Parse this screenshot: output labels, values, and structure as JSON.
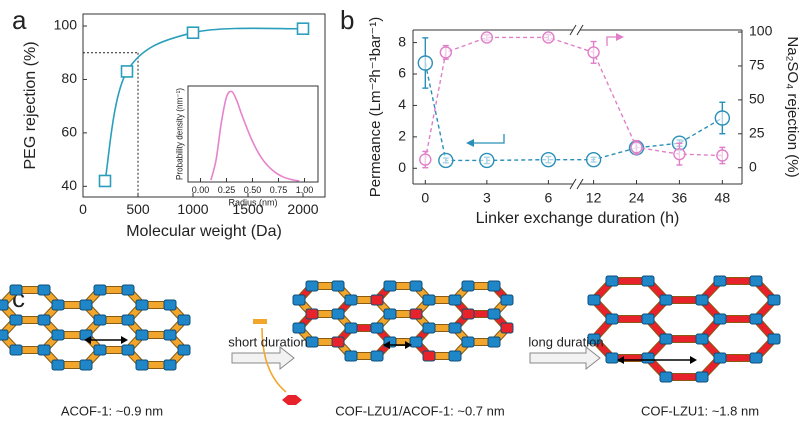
{
  "panel_labels": [
    "a",
    "b",
    "c"
  ],
  "chart_data": [
    {
      "type": "line",
      "markers": "square",
      "xlabel": "Molecular weight (Da)",
      "ylabel": "PEG rejection (%)",
      "x": [
        200,
        400,
        1000,
        2000
      ],
      "series": [
        {
          "color": "#2a9fbc",
          "values": [
            42,
            83,
            97.5,
            99
          ]
        }
      ],
      "xlim": [
        0,
        2200
      ],
      "ylim": [
        36,
        104.5
      ],
      "xticks": [
        0,
        500,
        1000,
        1500,
        2000
      ],
      "yticks": [
        40,
        60,
        80,
        100
      ],
      "cutoff": {
        "x": 500,
        "y": 90
      }
    },
    {
      "type": "line",
      "inset": true,
      "xlabel": "Radius (nm)",
      "ylabel": "Probability density (nm⁻¹)",
      "x": [
        0.1,
        0.15,
        0.2,
        0.25,
        0.3,
        0.35,
        0.4,
        0.5,
        0.6,
        0.7,
        0.8,
        0.9,
        0.95
      ],
      "series": [
        {
          "color": "#e683cc",
          "values": [
            0.05,
            0.6,
            1.6,
            2.3,
            2.45,
            2.2,
            1.8,
            1.1,
            0.6,
            0.3,
            0.13,
            0.05,
            0.03
          ]
        }
      ],
      "xlim": [
        -0.12,
        1.13
      ],
      "ylim": [
        0,
        2.6
      ],
      "xticks": [
        {
          "value": 0,
          "label": "0.00"
        },
        {
          "value": 0.25,
          "label": "0.25"
        },
        {
          "value": 0.5,
          "label": "0.50"
        },
        {
          "value": 0.75,
          "label": "0.75"
        },
        {
          "value": 1,
          "label": "1.00"
        }
      ]
    },
    {
      "type": "line",
      "markers": "circle",
      "linestyle": "dashed",
      "xlabel": "Linker exchange duration (h)",
      "ylabel": "Permeance (Lm⁻²h⁻¹bar⁻¹)",
      "y2label": "Na₂SO₄ rejection (%)",
      "x": [
        0,
        1,
        3,
        6,
        12,
        24,
        36,
        48
      ],
      "xlim": [
        [
          -0.6,
          7.2
        ],
        [
          8.2,
          53.5
        ]
      ],
      "xticks": [
        0,
        3,
        6,
        12,
        24,
        36,
        48
      ],
      "ylim": [
        -1,
        8.8
      ],
      "yticks": [
        0,
        2,
        4,
        6,
        8
      ],
      "y2lim": [
        -12,
        101.5
      ],
      "y2ticks": [
        0,
        25,
        50,
        75,
        100
      ],
      "series": [
        {
          "color": "#2a8fb8",
          "values": [
            6.7,
            0.5,
            0.5,
            0.55,
            0.55,
            1.3,
            1.6,
            3.2
          ],
          "errors": [
            1.6,
            0.15,
            0.2,
            0.2,
            0.15,
            0.3,
            0.2,
            1.0
          ]
        },
        {
          "color": "#e07fc8",
          "axis": "y2",
          "values": [
            6,
            85,
            96,
            96,
            85,
            15,
            10,
            9
          ],
          "errors": [
            6,
            5,
            2,
            2,
            8,
            5,
            8,
            6
          ]
        }
      ]
    }
  ],
  "diagram": {
    "labels": [
      "ACOF-1: ~0.9 nm",
      "COF-LZU1/ACOF-1: ~0.7 nm",
      "COF-LZU1: ~1.8 nm"
    ],
    "arrows": [
      "short duration",
      "long duration"
    ]
  }
}
